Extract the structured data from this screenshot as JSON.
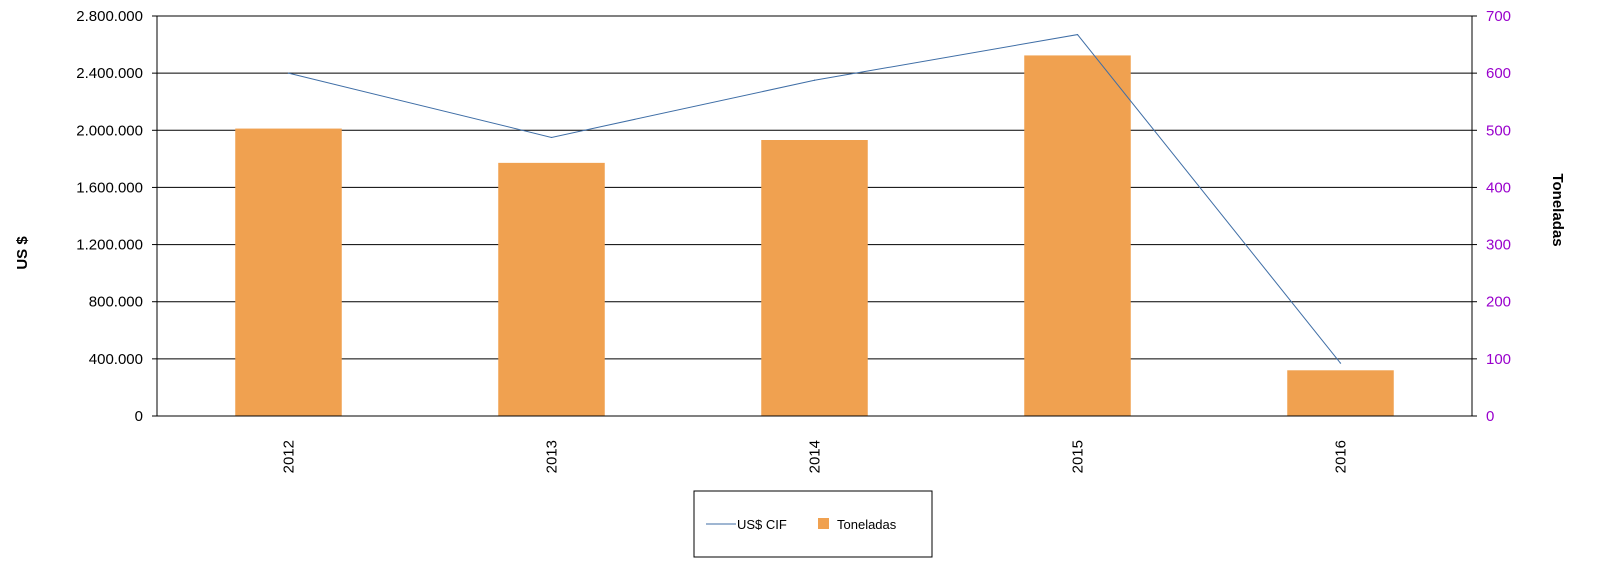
{
  "chart_data": {
    "type": "bar",
    "categories": [
      "2012",
      "2013",
      "2014",
      "2015",
      "2016"
    ],
    "series": [
      {
        "name": "Toneladas",
        "kind": "bar",
        "axis": "right",
        "values": [
          503,
          443,
          483,
          631,
          80
        ]
      },
      {
        "name": "US$ CIF",
        "kind": "line",
        "axis": "left",
        "values": [
          2400000,
          1950000,
          2350000,
          2670000,
          370000
        ]
      }
    ],
    "title": "",
    "ylabel": "US $",
    "y2label": "Toneladas",
    "ylim": [
      0,
      2800000
    ],
    "y2lim": [
      0,
      700
    ],
    "yticks": [
      "0",
      "400.000",
      "800.000",
      "1.200.000",
      "1.600.000",
      "2.000.000",
      "2.400.000",
      "2.800.000"
    ],
    "y2ticks": [
      "0",
      "100",
      "200",
      "300",
      "400",
      "500",
      "600",
      "700"
    ],
    "grid": true,
    "legend": "bottom-center",
    "colors": {
      "bar": "#f0a150",
      "line": "#3f6ea6",
      "right_axis": "#9900cc"
    }
  }
}
